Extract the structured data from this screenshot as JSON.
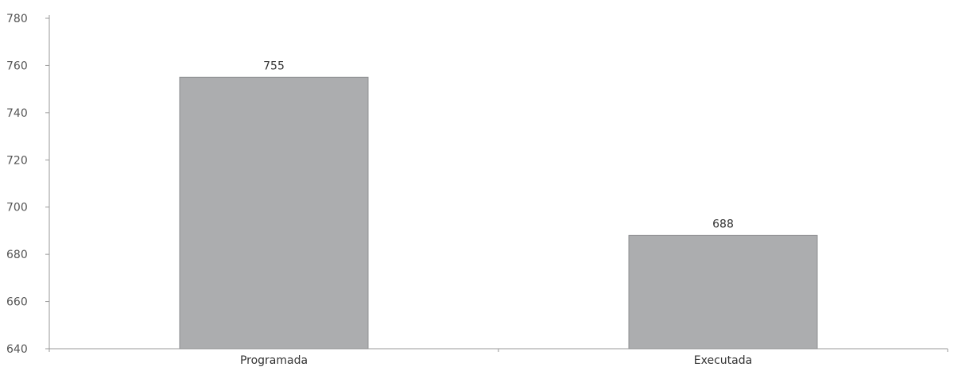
{
  "chart_data": {
    "type": "bar",
    "categories": [
      "Programada",
      "Executada"
    ],
    "values": [
      755,
      688
    ],
    "data_labels": [
      "755",
      "688"
    ],
    "title": "",
    "xlabel": "",
    "ylabel": "",
    "ylim": [
      640,
      780
    ],
    "yticks": [
      640,
      660,
      680,
      700,
      720,
      740,
      760,
      780
    ],
    "ytick_labels": [
      "640",
      "660",
      "680",
      "700",
      "720",
      "740",
      "760",
      "780"
    ],
    "grid": false,
    "legend": "none"
  },
  "colors": {
    "bar_fill": "#acadaf",
    "bar_stroke": "#8e8f91",
    "axis": "#9a9a9a"
  }
}
